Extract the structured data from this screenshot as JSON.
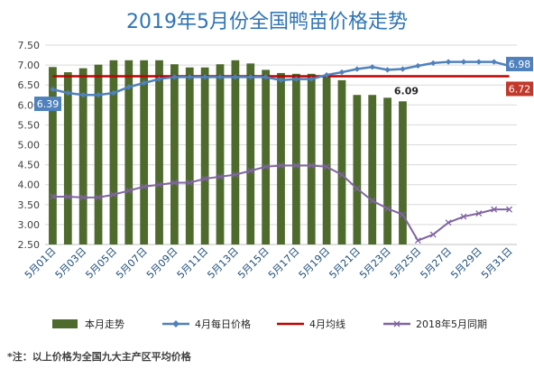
{
  "chart_data": {
    "type": "bar",
    "title": "2019年5月份全国鸭苗价格走势",
    "footnote": "*注：以上价格为全国九大主产区平均价格",
    "ylim": [
      2.5,
      7.5
    ],
    "yticks": [
      "2.50",
      "3.00",
      "3.50",
      "4.00",
      "4.50",
      "5.00",
      "5.50",
      "6.00",
      "6.50",
      "7.00",
      "7.50"
    ],
    "categories": [
      "5月01日",
      "5月02日",
      "5月03日",
      "5月04日",
      "5月05日",
      "5月06日",
      "5月07日",
      "5月08日",
      "5月09日",
      "5月10日",
      "5月11日",
      "5月12日",
      "5月13日",
      "5月14日",
      "5月15日",
      "5月16日",
      "5月17日",
      "5月18日",
      "5月19日",
      "5月20日",
      "5月21日",
      "5月22日",
      "5月23日",
      "5月24日",
      "5月25日",
      "5月26日",
      "5月27日",
      "5月28日",
      "5月29日",
      "5月30日",
      "5月31日"
    ],
    "xtick_labels": [
      "5月01日",
      "",
      "5月03日",
      "",
      "5月05日",
      "",
      "5月07日",
      "",
      "5月09日",
      "",
      "5月11日",
      "",
      "5月13日",
      "",
      "5月15日",
      "",
      "5月17日",
      "",
      "5月19日",
      "",
      "5月21日",
      "",
      "5月23日",
      "",
      "5月25日",
      "",
      "5月27日",
      "",
      "5月29日",
      "",
      "5月31日"
    ],
    "grid": true,
    "legend_position": "bottom",
    "series": [
      {
        "name": "本月走势",
        "type": "bar",
        "color": "#4e6b2d",
        "values": [
          6.95,
          6.82,
          6.92,
          7.01,
          7.12,
          7.12,
          7.12,
          7.12,
          7.02,
          6.94,
          6.94,
          7.02,
          7.12,
          7.04,
          6.88,
          6.8,
          6.78,
          6.78,
          6.72,
          6.62,
          6.25,
          6.25,
          6.18,
          6.09,
          null,
          null,
          null,
          null,
          null,
          null,
          null
        ]
      },
      {
        "name": "4月每日价格",
        "type": "line",
        "color": "#4f81bd",
        "marker": "diamond",
        "values": [
          6.39,
          6.3,
          6.25,
          6.25,
          6.3,
          6.45,
          6.55,
          6.65,
          6.7,
          6.7,
          6.7,
          6.7,
          6.7,
          6.7,
          6.7,
          6.62,
          6.65,
          6.65,
          6.75,
          6.82,
          6.9,
          6.95,
          6.88,
          6.9,
          6.98,
          7.05,
          7.08,
          7.08,
          7.08,
          7.08,
          6.98
        ]
      },
      {
        "name": "4月均线",
        "type": "line",
        "color": "#c00000",
        "values": [
          6.72,
          6.72,
          6.72,
          6.72,
          6.72,
          6.72,
          6.72,
          6.72,
          6.72,
          6.72,
          6.72,
          6.72,
          6.72,
          6.72,
          6.72,
          6.72,
          6.72,
          6.72,
          6.72,
          6.72,
          6.72,
          6.72,
          6.72,
          6.72,
          6.72,
          6.72,
          6.72,
          6.72,
          6.72,
          6.72,
          6.72
        ]
      },
      {
        "name": "2018年5月同期",
        "type": "line",
        "color": "#8064a2",
        "marker": "x",
        "values": [
          3.7,
          3.7,
          3.68,
          3.68,
          3.75,
          3.85,
          3.95,
          4.0,
          4.05,
          4.05,
          4.15,
          4.2,
          4.25,
          4.35,
          4.45,
          4.48,
          4.48,
          4.48,
          4.45,
          4.25,
          3.9,
          3.6,
          3.4,
          3.25,
          2.6,
          2.75,
          3.05,
          3.2,
          3.28,
          3.38,
          3.38
        ]
      }
    ],
    "annotations": [
      {
        "series_index": 0,
        "point_index": 23,
        "text": "6.09",
        "style": "plain"
      },
      {
        "series_index": 1,
        "point_index": 0,
        "text": "6.39",
        "style": "box",
        "color": "#4f81bd"
      },
      {
        "series_index": 1,
        "point_index": 30,
        "text": "6.98",
        "style": "box",
        "color": "#4f81bd"
      },
      {
        "series_index": 2,
        "point_index": 30,
        "text": "6.72",
        "style": "box",
        "color": "#c0392b"
      }
    ]
  }
}
